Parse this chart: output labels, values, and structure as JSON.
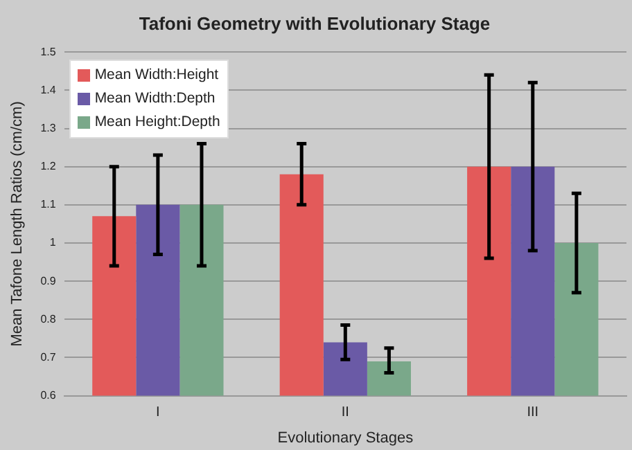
{
  "chart_data": {
    "type": "bar",
    "title": "Tafoni Geometry with Evolutionary Stage",
    "xlabel": "Evolutionary Stages",
    "ylabel": "Mean Tafone Length Ratios (cm/cm)",
    "categories": [
      "I",
      "II",
      "III"
    ],
    "series": [
      {
        "name": "Mean Width:Height",
        "color": "#e35a5a",
        "values": [
          1.07,
          1.18,
          1.2
        ],
        "errors": [
          [
            0.94,
            1.2
          ],
          [
            1.1,
            1.26
          ],
          [
            0.96,
            1.44
          ]
        ]
      },
      {
        "name": "Mean Width:Depth",
        "color": "#6a5aa6",
        "values": [
          1.1,
          0.74,
          1.2
        ],
        "errors": [
          [
            0.97,
            1.23
          ],
          [
            0.695,
            0.785
          ],
          [
            0.98,
            1.42
          ]
        ]
      },
      {
        "name": "Mean Height:Depth",
        "color": "#7aa88a",
        "values": [
          1.1,
          0.69,
          1.0
        ],
        "errors": [
          [
            0.94,
            1.26
          ],
          [
            0.66,
            0.725
          ],
          [
            0.87,
            1.13
          ]
        ]
      }
    ],
    "ylim": [
      0.6,
      1.5
    ],
    "yticks": [
      0.6,
      0.7,
      0.8,
      0.9,
      1,
      1.1,
      1.2,
      1.3,
      1.4,
      1.5
    ],
    "grid": "y",
    "legend": "top left"
  }
}
